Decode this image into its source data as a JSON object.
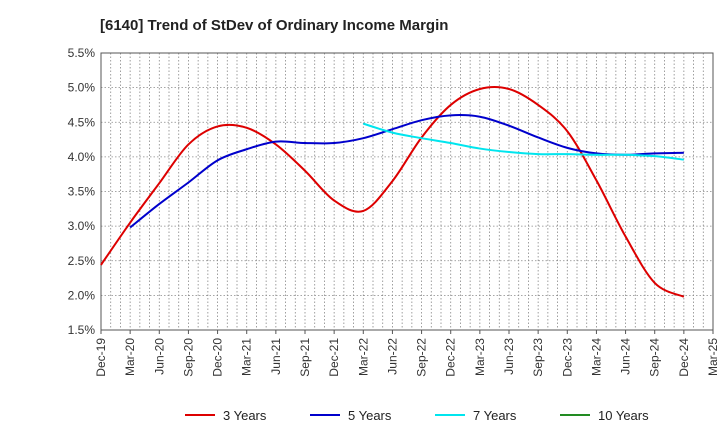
{
  "chart_data": {
    "type": "line",
    "title": "[6140]  Trend of StDev of Ordinary Income Margin",
    "xlabel": "",
    "ylabel": "",
    "ylim": [
      1.5,
      5.5
    ],
    "yticks": [
      "1.5%",
      "2.0%",
      "2.5%",
      "3.0%",
      "3.5%",
      "4.0%",
      "4.5%",
      "5.0%",
      "5.5%"
    ],
    "x_ticks": [
      "Dec-19",
      "Mar-20",
      "Jun-20",
      "Sep-20",
      "Dec-20",
      "Mar-21",
      "Jun-21",
      "Sep-21",
      "Dec-21",
      "Mar-22",
      "Jun-22",
      "Sep-22",
      "Dec-22",
      "Mar-23",
      "Jun-23",
      "Sep-23",
      "Dec-23",
      "Mar-24",
      "Jun-24",
      "Sep-24",
      "Dec-24",
      "Mar-25"
    ],
    "grid": true,
    "legend_position": "bottom",
    "series": [
      {
        "name": "3 Years",
        "color": "#dd0000",
        "points": [
          [
            0,
            2.44
          ],
          [
            1,
            3.05
          ],
          [
            2,
            3.62
          ],
          [
            3,
            4.18
          ],
          [
            4,
            4.44
          ],
          [
            5,
            4.42
          ],
          [
            6,
            4.18
          ],
          [
            7,
            3.8
          ],
          [
            8,
            3.37
          ],
          [
            9,
            3.22
          ],
          [
            10,
            3.65
          ],
          [
            11,
            4.28
          ],
          [
            12,
            4.75
          ],
          [
            13,
            4.98
          ],
          [
            14,
            4.98
          ],
          [
            15,
            4.75
          ],
          [
            16,
            4.37
          ],
          [
            17,
            3.66
          ],
          [
            18,
            2.85
          ],
          [
            19,
            2.18
          ],
          [
            20,
            1.98
          ]
        ]
      },
      {
        "name": "5 Years",
        "color": "#0000cc",
        "points": [
          [
            1,
            2.98
          ],
          [
            2,
            3.32
          ],
          [
            3,
            3.63
          ],
          [
            4,
            3.95
          ],
          [
            5,
            4.11
          ],
          [
            6,
            4.22
          ],
          [
            7,
            4.2
          ],
          [
            8,
            4.2
          ],
          [
            9,
            4.27
          ],
          [
            10,
            4.4
          ],
          [
            11,
            4.53
          ],
          [
            12,
            4.6
          ],
          [
            13,
            4.58
          ],
          [
            14,
            4.45
          ],
          [
            15,
            4.28
          ],
          [
            16,
            4.13
          ],
          [
            17,
            4.05
          ],
          [
            18,
            4.03
          ],
          [
            19,
            4.05
          ],
          [
            20,
            4.06
          ]
        ]
      },
      {
        "name": "7 Years",
        "color": "#00e5ee",
        "points": [
          [
            9,
            4.48
          ],
          [
            10,
            4.35
          ],
          [
            11,
            4.27
          ],
          [
            12,
            4.2
          ],
          [
            13,
            4.12
          ],
          [
            14,
            4.07
          ],
          [
            15,
            4.04
          ],
          [
            16,
            4.04
          ],
          [
            17,
            4.03
          ],
          [
            18,
            4.03
          ],
          [
            19,
            4.01
          ],
          [
            20,
            3.96
          ]
        ]
      },
      {
        "name": "10 Years",
        "color": "#228b22",
        "points": []
      }
    ]
  }
}
